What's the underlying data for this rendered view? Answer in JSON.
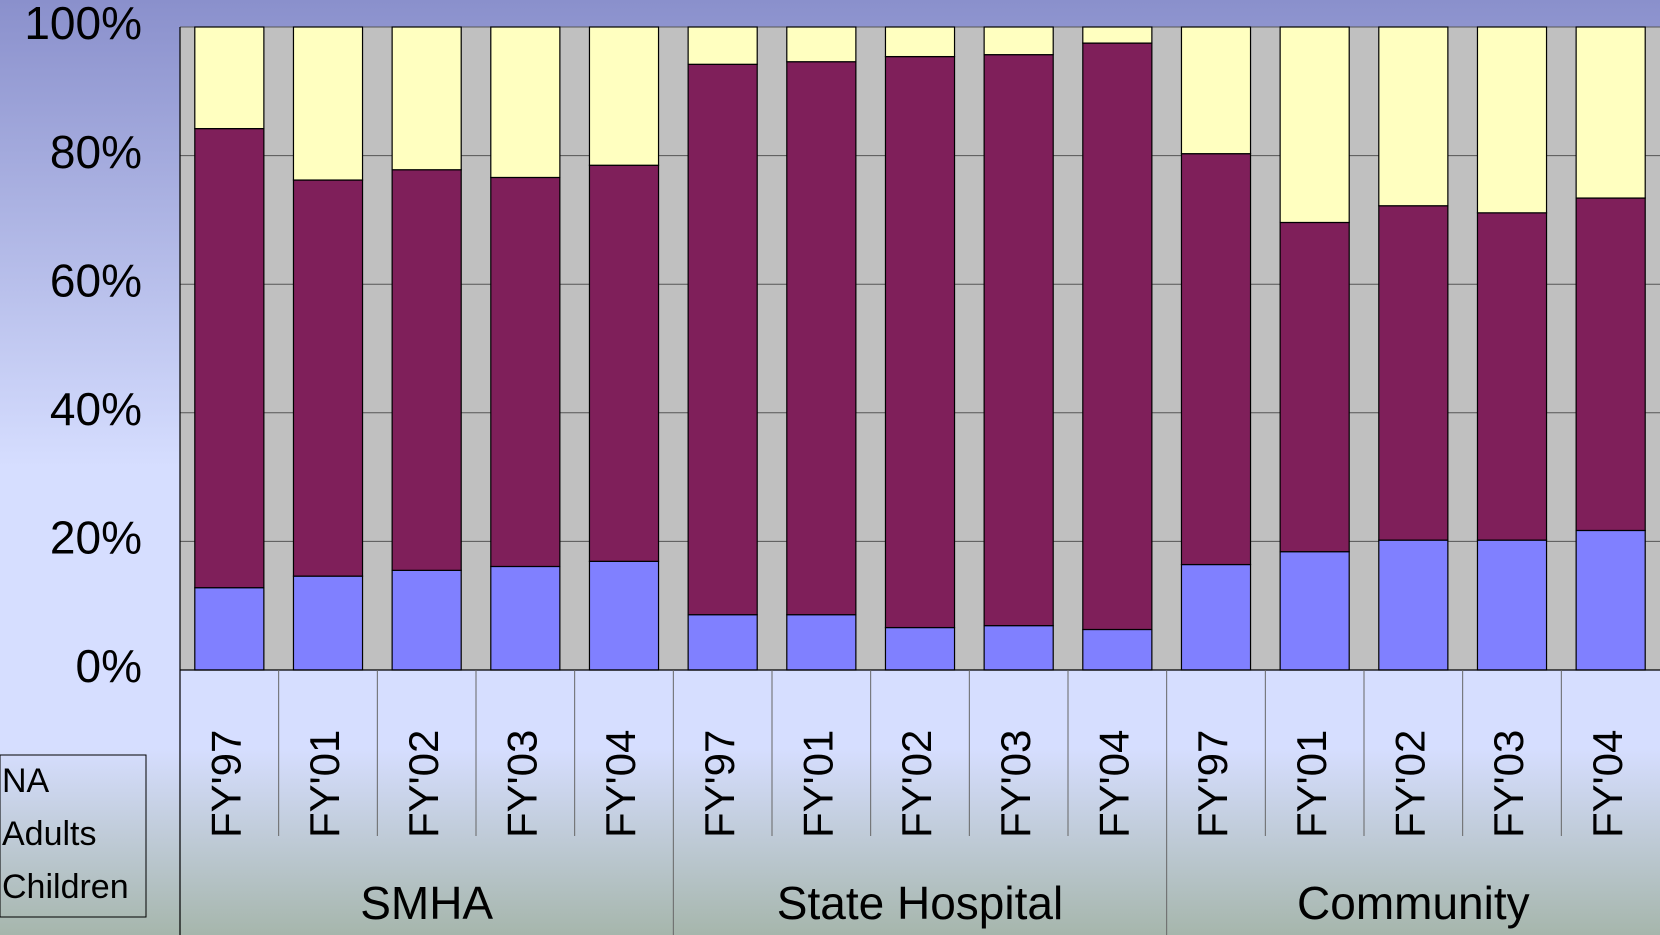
{
  "chart_data": {
    "type": "stacked_bar",
    "groups": [
      {
        "name": "SMHA",
        "categories": [
          "FY'97",
          "FY'01",
          "FY'02",
          "FY'03",
          "FY'04"
        ]
      },
      {
        "name": "State Hospital",
        "categories": [
          "FY'97",
          "FY'01",
          "FY'02",
          "FY'03",
          "FY'04"
        ]
      },
      {
        "name": "Community",
        "categories": [
          "FY'97",
          "FY'01",
          "FY'02",
          "FY'03",
          "FY'04"
        ]
      }
    ],
    "series": [
      {
        "name": "Children",
        "color": "#8080ff",
        "values": [
          12.8,
          14.6,
          15.5,
          16.1,
          16.9,
          8.6,
          8.6,
          6.6,
          6.9,
          6.3,
          16.4,
          18.4,
          20.2,
          20.2,
          21.7
        ]
      },
      {
        "name": "Adults",
        "color": "#7f1f5a",
        "values": [
          71.4,
          61.6,
          62.3,
          60.5,
          61.6,
          85.6,
          86.0,
          88.8,
          88.8,
          91.2,
          63.9,
          51.2,
          52.0,
          50.9,
          51.7
        ]
      },
      {
        "name": "NA",
        "color": "#ffffc0",
        "values": [
          15.8,
          23.8,
          22.2,
          23.4,
          21.5,
          5.8,
          5.4,
          4.6,
          4.3,
          2.5,
          19.7,
          30.4,
          27.8,
          28.9,
          26.6
        ]
      }
    ],
    "ylim": [
      0,
      100
    ],
    "yticks": [
      {
        "value": 0,
        "label": "0%"
      },
      {
        "value": 20,
        "label": "20%"
      },
      {
        "value": 40,
        "label": "40%"
      },
      {
        "value": 60,
        "label": "60%"
      },
      {
        "value": 80,
        "label": "80%"
      },
      {
        "value": 100,
        "label": "100%"
      }
    ],
    "grid": true,
    "legend": "bottom-left"
  }
}
